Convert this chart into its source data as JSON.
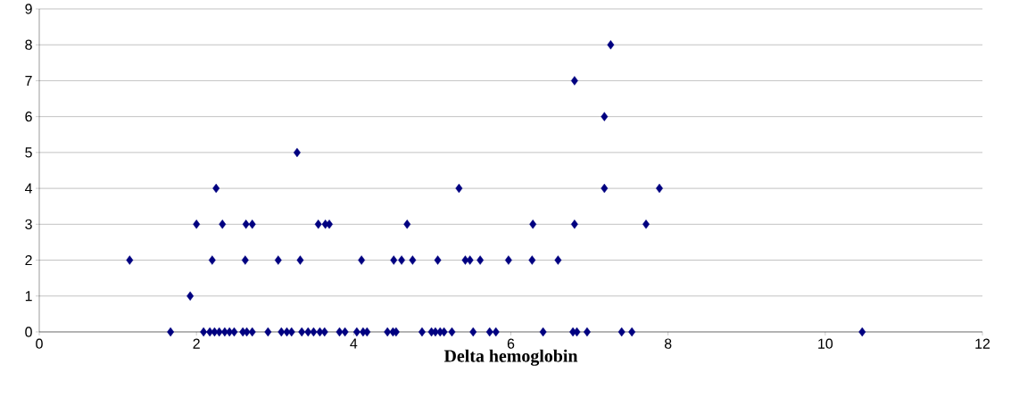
{
  "chart_data": {
    "type": "scatter",
    "xlabel": "Delta hemoglobin",
    "x": [
      1.15,
      2.2,
      2.62,
      3.04,
      3.32,
      4.1,
      4.51,
      4.61,
      4.75,
      5.07,
      5.42,
      5.48,
      5.61,
      5.97,
      6.27,
      6.6,
      2.0,
      2.33,
      2.63,
      2.71,
      3.55,
      3.64,
      3.69,
      4.68,
      6.28,
      6.81,
      7.72,
      2.25,
      5.34,
      7.19,
      7.89,
      3.28,
      1.92,
      7.19,
      6.81,
      7.27,
      1.67,
      2.09,
      2.17,
      2.23,
      2.29,
      2.36,
      2.42,
      2.48,
      2.59,
      2.64,
      2.71,
      2.91,
      3.08,
      3.15,
      3.21,
      3.34,
      3.42,
      3.49,
      3.57,
      3.63,
      3.82,
      3.89,
      4.04,
      4.12,
      4.17,
      4.43,
      4.5,
      4.54,
      4.87,
      4.99,
      5.04,
      5.1,
      5.15,
      5.25,
      5.52,
      5.73,
      5.81,
      6.41,
      6.79,
      6.84,
      6.97,
      7.41,
      7.54,
      10.47
    ],
    "values": [
      2,
      2,
      2,
      2,
      2,
      2,
      2,
      2,
      2,
      2,
      2,
      2,
      2,
      2,
      2,
      2,
      3,
      3,
      3,
      3,
      3,
      3,
      3,
      3,
      3,
      3,
      3,
      4,
      4,
      4,
      4,
      5,
      1,
      6,
      7,
      8,
      0,
      0,
      0,
      0,
      0,
      0,
      0,
      0,
      0,
      0,
      0,
      0,
      0,
      0,
      0,
      0,
      0,
      0,
      0,
      0,
      0,
      0,
      0,
      0,
      0,
      0,
      0,
      0,
      0,
      0,
      0,
      0,
      0,
      0,
      0,
      0,
      0,
      0,
      0,
      0,
      0,
      0,
      0,
      0
    ],
    "color": "#000080",
    "marker": "diamond",
    "xlim": [
      0,
      12
    ],
    "xticks": [
      0,
      2,
      4,
      6,
      8,
      10,
      12
    ],
    "ylim": [
      0,
      9
    ],
    "yticks": [
      0,
      1,
      2,
      3,
      4,
      5,
      6,
      7,
      8,
      9
    ],
    "grid": "y"
  }
}
